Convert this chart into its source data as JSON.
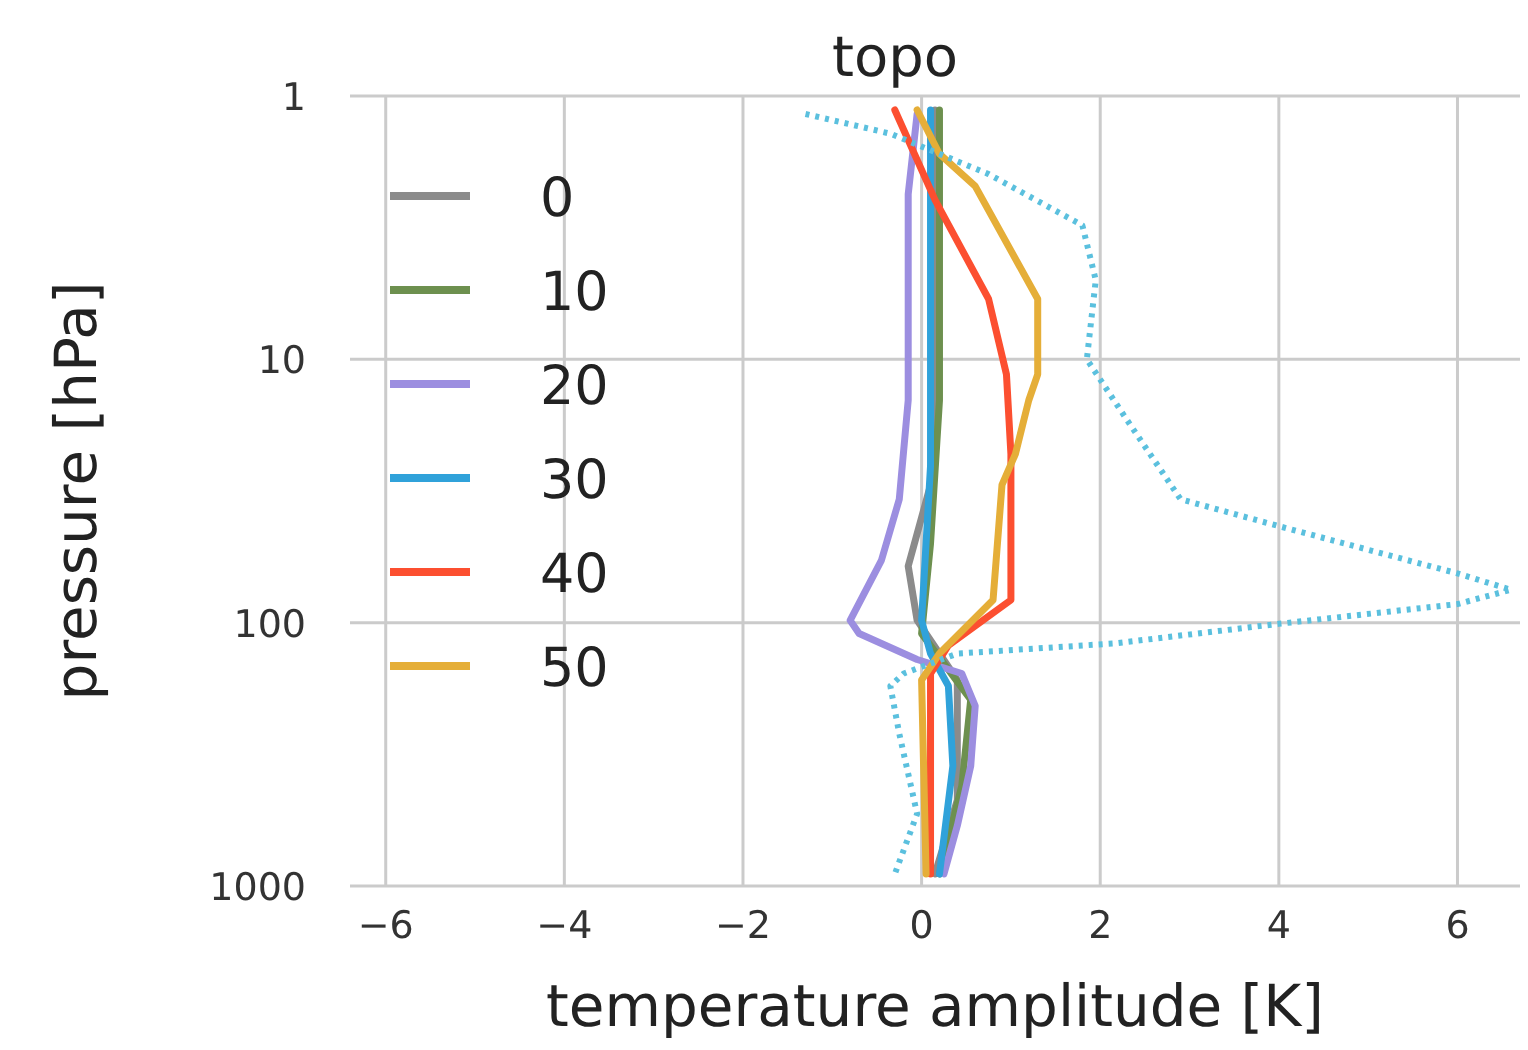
{
  "chart_data": {
    "type": "line",
    "title": "topo",
    "xlabel": "temperature amplitude [K]",
    "ylabel": "pressure [hPa]",
    "log": "y",
    "grid": true,
    "legend": "top left",
    "xlim": [
      -6.4,
      6.7
    ],
    "ylim": [
      1000,
      1
    ],
    "xticks": [
      {
        "value": -6,
        "label": "−6"
      },
      {
        "value": -4,
        "label": "−4"
      },
      {
        "value": -2,
        "label": "−2"
      },
      0,
      2,
      4,
      6
    ],
    "yticks": [
      1,
      10,
      100,
      1000
    ],
    "series": [
      {
        "name": "0",
        "color": "#8b8b8b",
        "x": [
          0.15,
          0.15,
          0.1,
          -0.15,
          -0.05,
          0.4,
          0.4,
          0.15
        ],
        "values": [
          1.13,
          10,
          30,
          61,
          98,
          165,
          471,
          900
        ]
      },
      {
        "name": "10",
        "color": "#6d904f",
        "x": [
          0.2,
          0.2,
          0.1,
          0.0,
          0.55,
          0.45,
          0.2
        ],
        "values": [
          1.13,
          14.3,
          50,
          110,
          196,
          417,
          900
        ]
      },
      {
        "name": "20",
        "color": "#9c8ee0",
        "x": [
          -0.05,
          -0.15,
          -0.15,
          -0.25,
          -0.45,
          -0.8,
          -0.7,
          -0.05,
          0.45,
          0.6,
          0.55,
          0.4,
          0.25
        ],
        "values": [
          1.17,
          2.36,
          14.3,
          34,
          58,
          98,
          110,
          138,
          156,
          207,
          350,
          590,
          900
        ]
      },
      {
        "name": "30",
        "color": "#30a2da",
        "x": [
          0.1,
          0.1,
          0.0,
          0.1,
          0.3,
          0.35,
          0.2
        ],
        "values": [
          1.13,
          25.4,
          98,
          131,
          174,
          350,
          900
        ]
      },
      {
        "name": "40",
        "color": "#fc4f30",
        "x": [
          -0.3,
          0.15,
          0.75,
          0.95,
          1.0,
          1.0,
          1.0,
          0.3,
          0.1,
          0.1,
          0.1
        ],
        "values": [
          1.13,
          2.48,
          5.9,
          11.4,
          22.9,
          55,
          82,
          122,
          156,
          264,
          900
        ]
      },
      {
        "name": "50",
        "color": "#e5ae38",
        "x": [
          -0.05,
          0.2,
          0.6,
          1.3,
          1.3,
          1.2,
          1.05,
          0.9,
          0.8,
          0.2,
          0,
          0.05
        ],
        "values": [
          1.13,
          1.66,
          2.2,
          5.9,
          11.4,
          14.3,
          22.9,
          30,
          82,
          131,
          165,
          900
        ]
      },
      {
        "color": "#5bc0de",
        "line_style": "dotted",
        "x": [
          -1.3,
          -0.35,
          0.75,
          1.8,
          1.95,
          1.85,
          2.3,
          2.9,
          4.0,
          6.0,
          6.6,
          6.0,
          4.0,
          2.15,
          0.4,
          -0.2,
          -0.35,
          -0.25,
          -0.05,
          -0.3
        ],
        "values": [
          1.17,
          1.39,
          1.98,
          3.1,
          5,
          10,
          17,
          34,
          43,
          65,
          75,
          85,
          101,
          120,
          131,
          156,
          174,
          264,
          532,
          900
        ]
      }
    ]
  }
}
